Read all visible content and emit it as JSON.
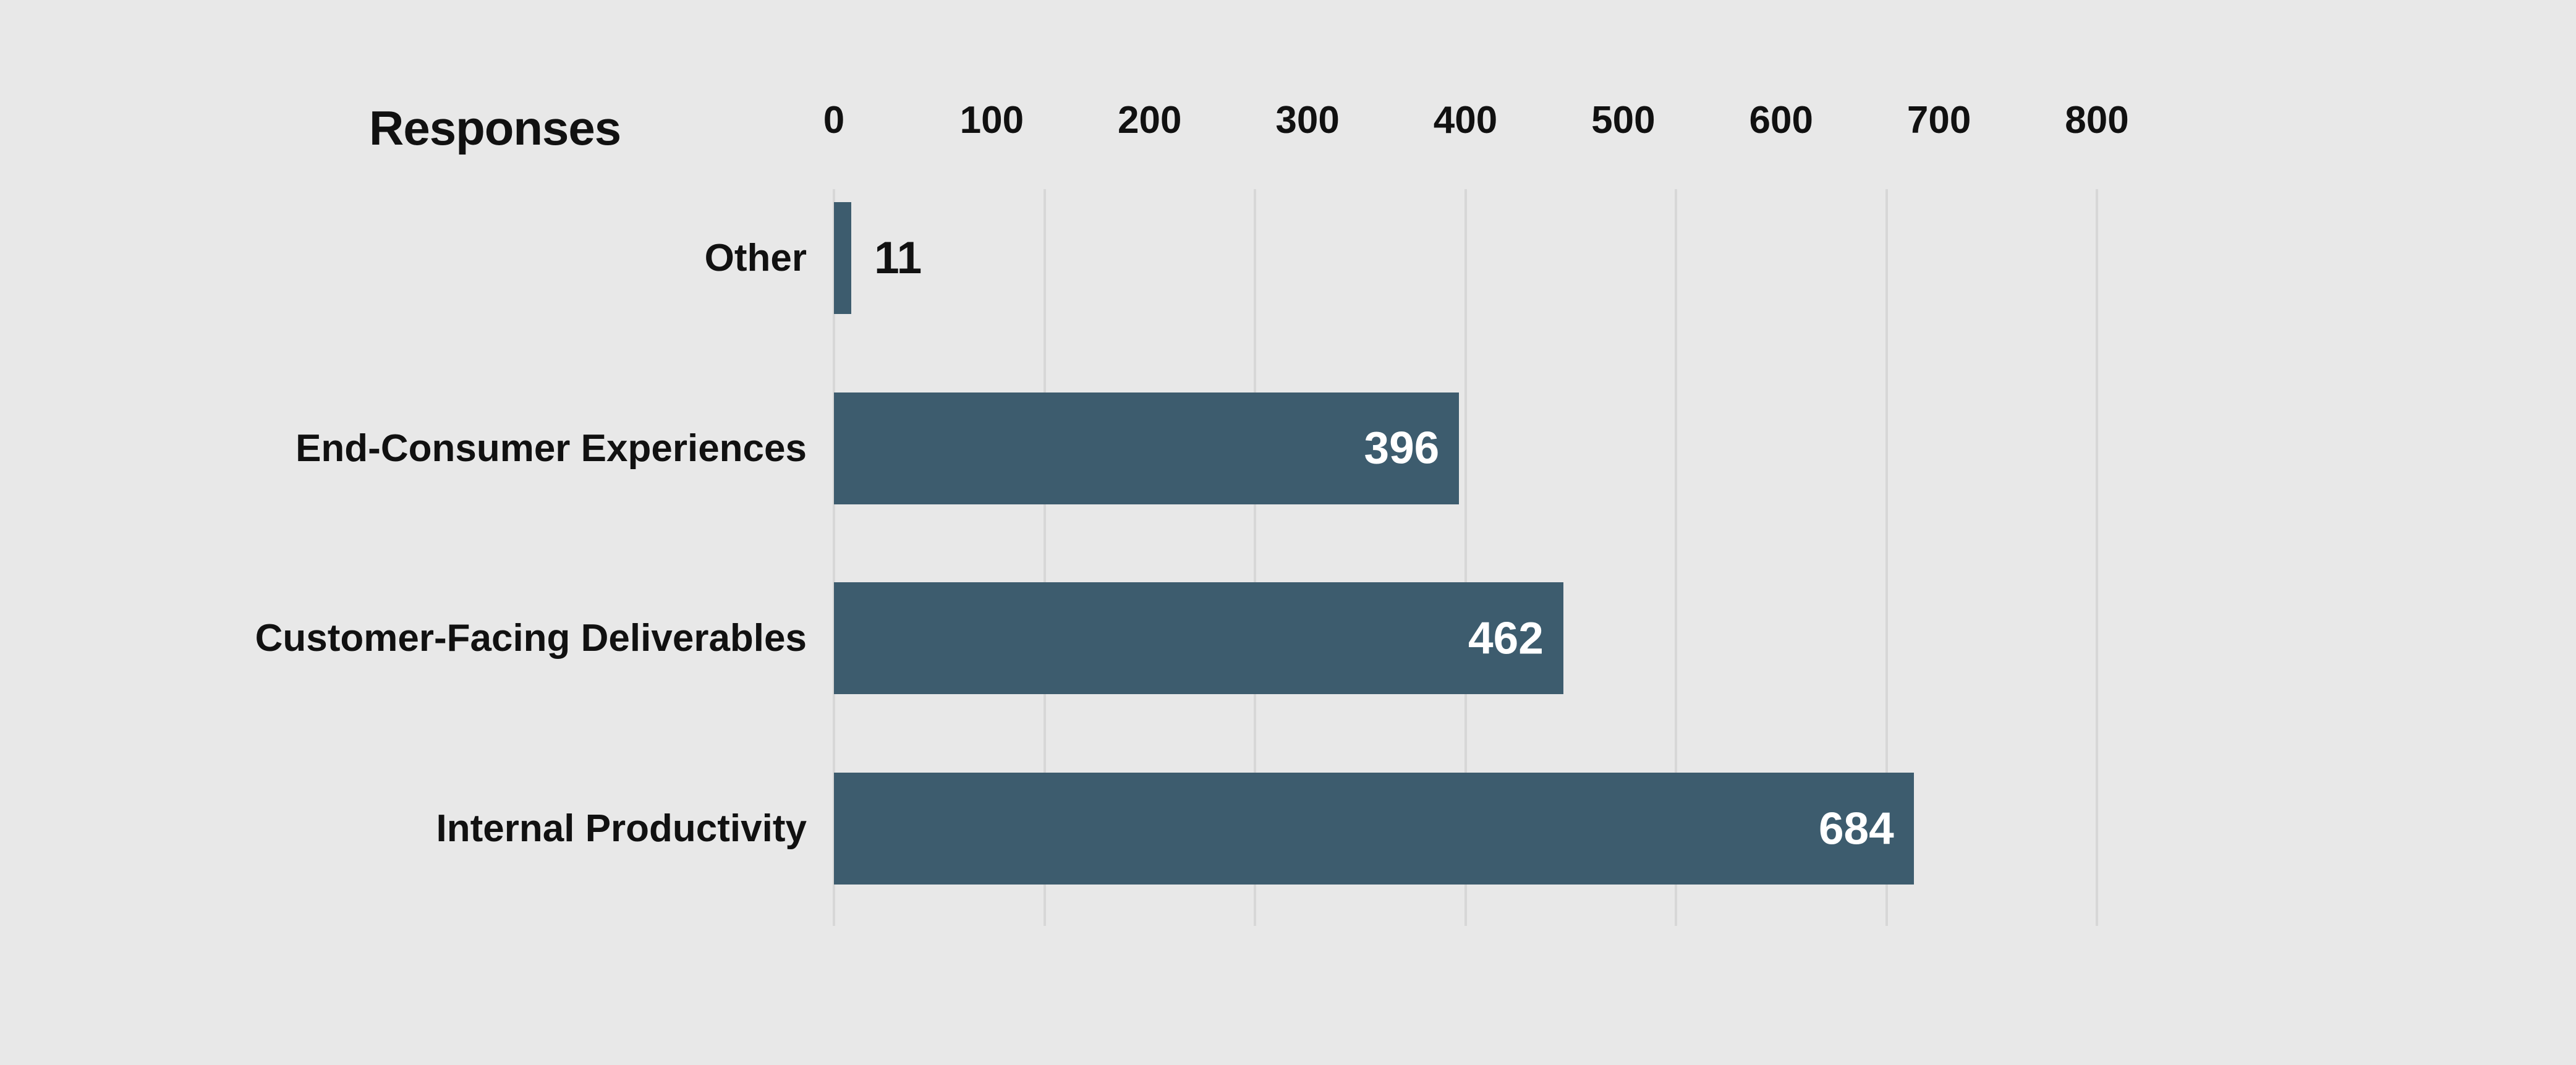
{
  "page": {
    "background_color": "#e8e8e8"
  },
  "chart_data": {
    "type": "bar",
    "orientation": "horizontal",
    "title": "Responses",
    "categories": [
      "Other",
      "End-Consumer Experiences",
      "Customer-Facing Deliverables",
      "Internal Productivity"
    ],
    "values": [
      11,
      396,
      462,
      684
    ],
    "value_labels": [
      "11",
      "396",
      "462",
      "684"
    ],
    "xlabel": "",
    "ylabel": "",
    "x_axis": {
      "position": "top",
      "min": 0,
      "max": 800,
      "tick_values": [
        0,
        100,
        200,
        300,
        400,
        500,
        600,
        700,
        800
      ],
      "tick_labels": [
        "0",
        "100",
        "200",
        "300",
        "400",
        "500",
        "600",
        "700",
        "800"
      ]
    },
    "gridlines": {
      "visible": true,
      "count": 7,
      "color": "#d7d7d7"
    },
    "legend": {
      "visible": false
    },
    "colors": {
      "bar": "#3d5c6e",
      "value_label_inside": "#ffffff",
      "value_label_outside": "#111111",
      "axis_text": "#111111",
      "category_text": "#111111",
      "title_text": "#111111"
    }
  }
}
